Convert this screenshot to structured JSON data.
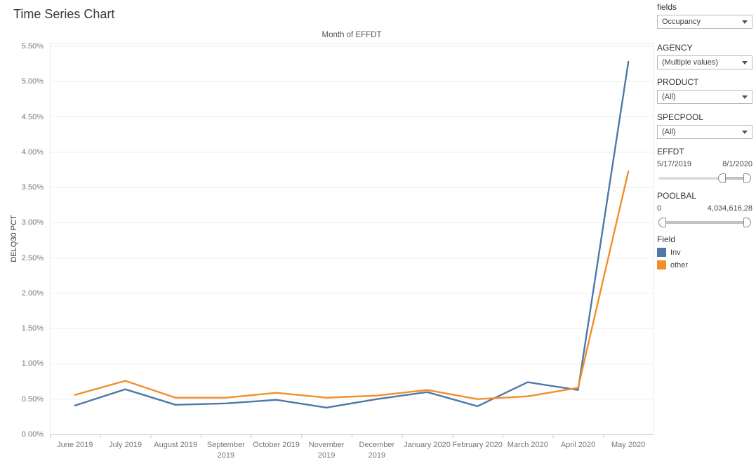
{
  "page": {
    "title": "Time Series Chart"
  },
  "chart_data": {
    "type": "line",
    "title": "Month of EFFDT",
    "xlabel": "",
    "ylabel": "DELQ30 PCT",
    "categories": [
      "June 2019",
      "July 2019",
      "August 2019",
      "September 2019",
      "October 2019",
      "November 2019",
      "December 2019",
      "January 2020",
      "February 2020",
      "March 2020",
      "April 2020",
      "May 2020"
    ],
    "series": [
      {
        "name": "Inv",
        "color": "#4e79a7",
        "values": [
          0.41,
          0.64,
          0.42,
          0.44,
          0.49,
          0.38,
          0.5,
          0.6,
          0.4,
          0.74,
          0.63,
          5.28
        ]
      },
      {
        "name": "other",
        "color": "#f28e2b",
        "values": [
          0.56,
          0.76,
          0.52,
          0.52,
          0.59,
          0.52,
          0.55,
          0.63,
          0.5,
          0.54,
          0.66,
          3.73
        ]
      }
    ],
    "ylim": [
      0,
      5.5
    ],
    "ytick_step": 0.5,
    "ytick_format": "0.00%",
    "grid": true,
    "legend_position": "right-panel"
  },
  "sidebar": {
    "filters": [
      {
        "label": "fields",
        "type": "dropdown",
        "value": "Occupancy"
      },
      {
        "label": "AGENCY",
        "type": "dropdown",
        "value": "(Multiple values)"
      },
      {
        "label": "PRODUCT",
        "type": "dropdown",
        "value": "(All)"
      },
      {
        "label": "SPECPOOL",
        "type": "dropdown",
        "value": "(All)"
      },
      {
        "label": "EFFDT",
        "type": "range-slider",
        "min_label": "5/17/2019",
        "max_label": "8/1/2020",
        "handle_positions": [
          0.7,
          1.0
        ]
      },
      {
        "label": "POOLBAL",
        "type": "range-slider",
        "min_label": "0",
        "max_label": "4,034,616,28",
        "handle_positions": [
          0.0,
          1.0
        ]
      }
    ],
    "legend": {
      "title": "Field",
      "items": [
        {
          "label": "Inv",
          "color": "#4e79a7"
        },
        {
          "label": "other",
          "color": "#f28e2b"
        }
      ]
    }
  },
  "icons": {
    "dropdown_caret": "caret-down",
    "slider_handle": "range-handle"
  },
  "colors": {
    "grid": "#ededed",
    "axis": "#c9c9c9",
    "pane_border": "#e8e8e8",
    "tick_text": "#767676"
  }
}
